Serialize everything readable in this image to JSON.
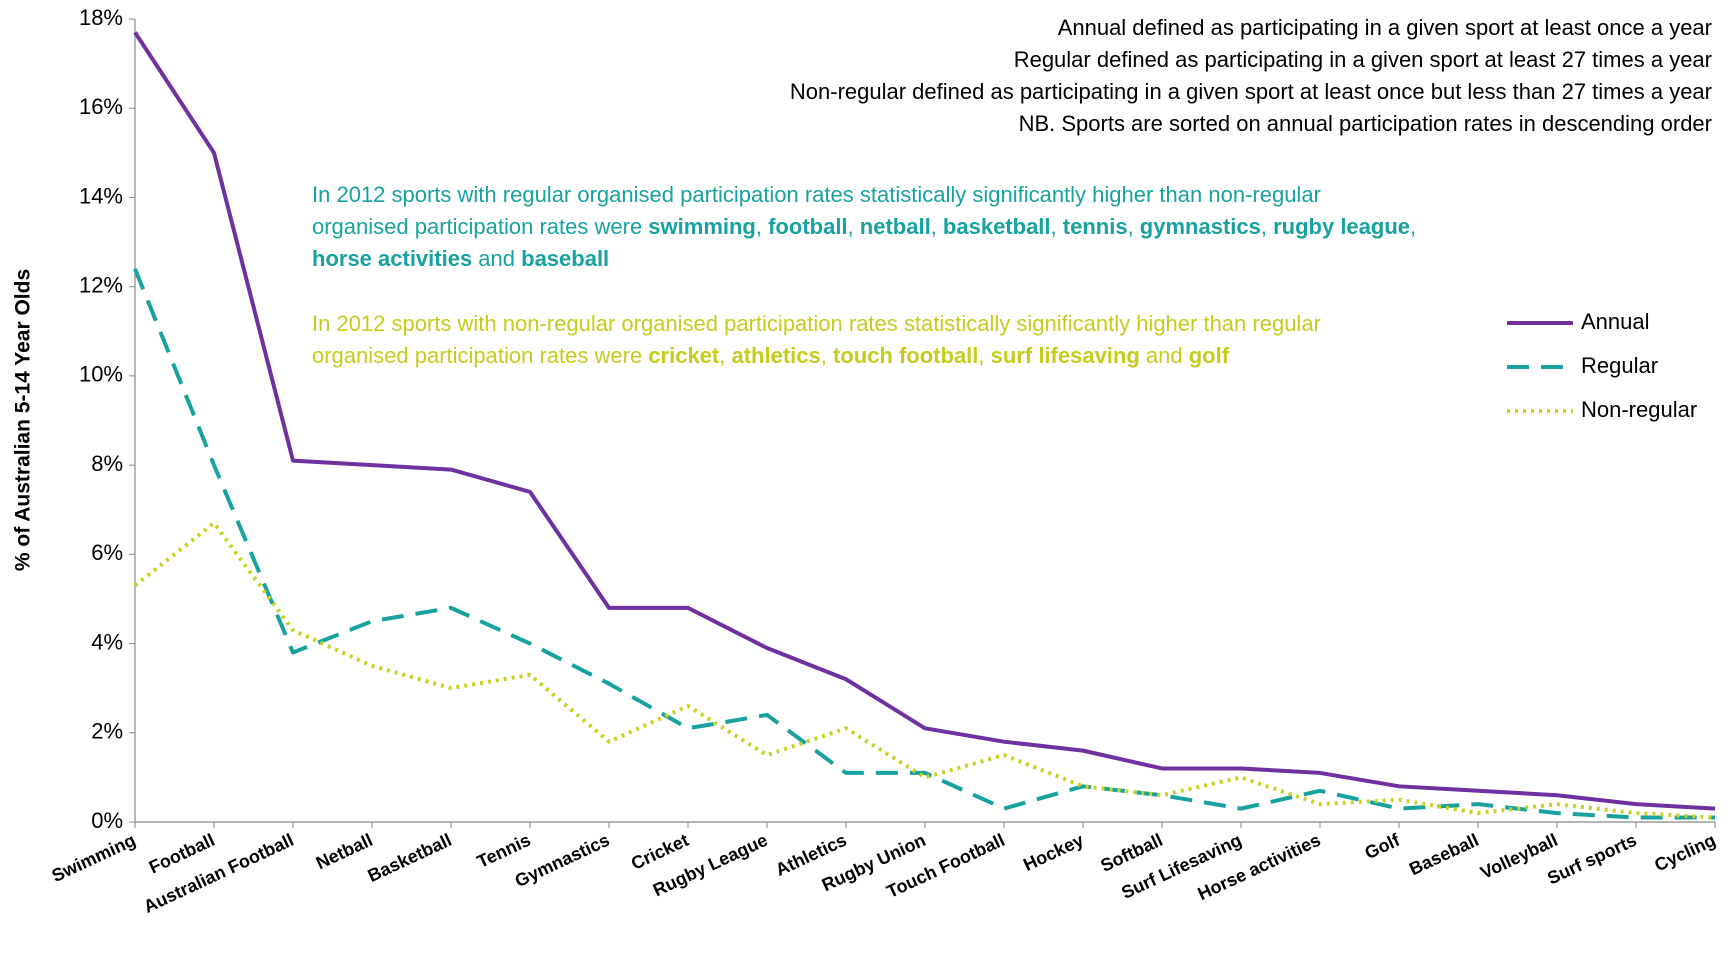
{
  "chart_data": {
    "type": "line",
    "ylabel": "% of Australian 5-14 Year Olds",
    "notes": [
      "Annual defined as participating in a given sport at least once a year",
      "Regular defined as participating in a given sport at least 27 times a year",
      "Non-regular defined as participating in a given sport at least once but less than 27 times a year",
      "NB. Sports are sorted on annual participation rates in descending order"
    ],
    "annotations": [
      {
        "color": "#17a2a0",
        "segments": [
          {
            "text": "In 2012 sports with regular organised participation rates statistically significantly higher than non-regular organised participation rates were ",
            "bold": false
          },
          {
            "text": "swimming",
            "bold": true
          },
          {
            "text": ", ",
            "bold": false
          },
          {
            "text": "football",
            "bold": true
          },
          {
            "text": ", ",
            "bold": false
          },
          {
            "text": "netball",
            "bold": true
          },
          {
            "text": ", ",
            "bold": false
          },
          {
            "text": "basketball",
            "bold": true
          },
          {
            "text": ", ",
            "bold": false
          },
          {
            "text": "tennis",
            "bold": true
          },
          {
            "text": ", ",
            "bold": false
          },
          {
            "text": "gymnastics",
            "bold": true
          },
          {
            "text": ", ",
            "bold": false
          },
          {
            "text": "rugby league",
            "bold": true
          },
          {
            "text": ", ",
            "bold": false
          },
          {
            "text": "horse activities",
            "bold": true
          },
          {
            "text": " and ",
            "bold": false
          },
          {
            "text": "baseball",
            "bold": true
          }
        ]
      },
      {
        "color": "#c5cc1c",
        "segments": [
          {
            "text": "In 2012 sports with non-regular organised participation rates statistically significantly higher than regular organised participation rates were ",
            "bold": false
          },
          {
            "text": "cricket",
            "bold": true
          },
          {
            "text": ", ",
            "bold": false
          },
          {
            "text": "athletics",
            "bold": true
          },
          {
            "text": ", ",
            "bold": false
          },
          {
            "text": "touch football",
            "bold": true
          },
          {
            "text": ", ",
            "bold": false
          },
          {
            "text": "surf lifesaving",
            "bold": true
          },
          {
            "text": " and ",
            "bold": false
          },
          {
            "text": "golf",
            "bold": true
          }
        ]
      }
    ],
    "categories": [
      "Swimming",
      "Football",
      "Australian Football",
      "Netball",
      "Basketball",
      "Tennis",
      "Gymnastics",
      "Cricket",
      "Rugby League",
      "Athletics",
      "Rugby Union",
      "Touch Football",
      "Hockey",
      "Softball",
      "Surf Lifesaving",
      "Horse activities",
      "Golf",
      "Baseball",
      "Volleyball",
      "Surf sports",
      "Cycling"
    ],
    "series": [
      {
        "name": "Annual",
        "color": "#7030a0",
        "style": "solid",
        "values": [
          17.7,
          15.0,
          8.1,
          8.0,
          7.9,
          7.4,
          4.8,
          4.8,
          3.9,
          3.2,
          2.1,
          1.8,
          1.6,
          1.2,
          1.2,
          1.1,
          0.8,
          0.7,
          0.6,
          0.4,
          0.3
        ]
      },
      {
        "name": "Regular",
        "color": "#17a2a0",
        "style": "dashed",
        "values": [
          12.4,
          8.0,
          3.8,
          4.5,
          4.8,
          4.0,
          3.1,
          2.1,
          2.4,
          1.1,
          1.1,
          0.3,
          0.8,
          0.6,
          0.3,
          0.7,
          0.3,
          0.4,
          0.2,
          0.1,
          0.1
        ]
      },
      {
        "name": "Non-regular",
        "color": "#c9d21f",
        "style": "dotted",
        "values": [
          5.3,
          6.7,
          4.3,
          3.5,
          3.0,
          3.3,
          1.8,
          2.6,
          1.5,
          2.1,
          1.0,
          1.5,
          0.8,
          0.6,
          1.0,
          0.4,
          0.5,
          0.2,
          0.4,
          0.2,
          0.1
        ]
      }
    ],
    "ylim": [
      0,
      18
    ],
    "yticks": [
      {
        "value": 0,
        "label": "0%"
      },
      {
        "value": 2,
        "label": "2%"
      },
      {
        "value": 4,
        "label": "4%"
      },
      {
        "value": 6,
        "label": "6%"
      },
      {
        "value": 8,
        "label": "8%"
      },
      {
        "value": 10,
        "label": "10%"
      },
      {
        "value": 12,
        "label": "12%"
      },
      {
        "value": 14,
        "label": "14%"
      },
      {
        "value": 16,
        "label": "16%"
      },
      {
        "value": 18,
        "label": "18%"
      }
    ],
    "grid": false,
    "legend": "right"
  }
}
